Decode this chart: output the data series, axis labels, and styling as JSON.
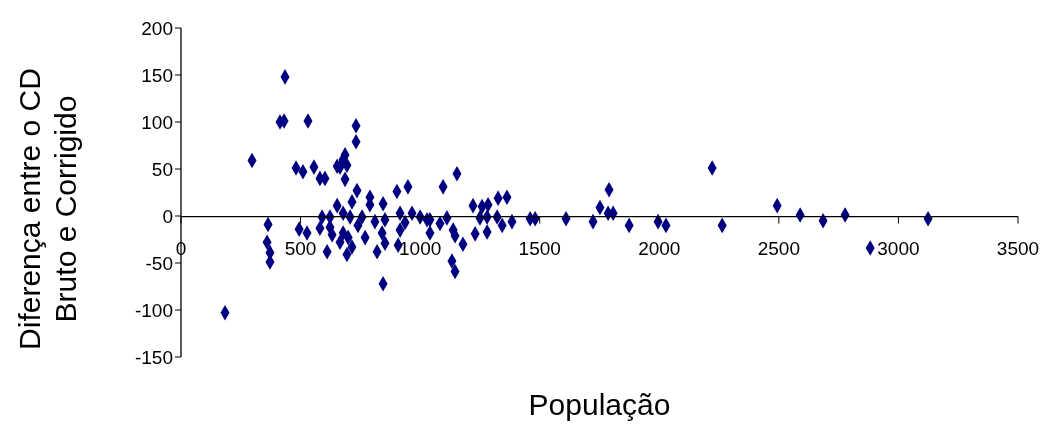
{
  "chart_data": {
    "type": "scatter",
    "xlabel": "População",
    "ylabel": "Diferença entre o CD Bruto e Corrigido",
    "marker": "diamond",
    "grid": false,
    "legend": false,
    "xlim": [
      0,
      3500
    ],
    "xticks": [
      0,
      500,
      1000,
      1500,
      2000,
      2500,
      3000,
      3500
    ],
    "ylim": [
      -150,
      200
    ],
    "yticks": [
      -150,
      -100,
      -50,
      0,
      50,
      100,
      150,
      200
    ],
    "series": [
      {
        "color": "#000080",
        "x": [
          184,
          297,
          414,
          431,
          435,
          531,
          481,
          510,
          364,
          494,
          527,
          360,
          372,
          372,
          732,
          732,
          556,
          581,
          602,
          686,
          678,
          653,
          665,
          694,
          686,
          736,
          715,
          790,
          790,
          845,
          903,
          949,
          653,
          590,
          623,
          678,
          707,
          757,
          811,
          853,
          916,
          966,
          1000,
          1029,
          581,
          632,
          665,
          678,
          699,
          715,
          694,
          611,
          770,
          820,
          853,
          841,
          916,
          937,
          908,
          845,
          623,
          740,
          1154,
          1096,
          1041,
          1083,
          1112,
          1041,
          1138,
          1146,
          1179,
          1133,
          1146,
          1221,
          1259,
          1284,
          1326,
          1363,
          1250,
          1280,
          1322,
          1343,
          1384,
          1230,
          1280,
          1460,
          1481,
          1610,
          1723,
          1752,
          1790,
          1786,
          1807,
          1874,
          1995,
          2028,
          2221,
          2263,
          2493,
          2589,
          2685,
          2777,
          2882,
          3124
        ],
        "values": [
          -103,
          59,
          100,
          101,
          148,
          101,
          51,
          47,
          -9,
          -14,
          -18,
          -28,
          -39,
          -49,
          96,
          79,
          52,
          40,
          40,
          65,
          60,
          53,
          52,
          54,
          39,
          27,
          15,
          20,
          12,
          13,
          26,
          31,
          11,
          -1,
          -1,
          3,
          -1,
          -1,
          -6,
          -4,
          3,
          3,
          -1,
          -4,
          -13,
          -20,
          -28,
          -18,
          -23,
          -33,
          -41,
          -38,
          -23,
          -38,
          -29,
          -18,
          -15,
          -7,
          -31,
          -72,
          -12,
          -10,
          45,
          31,
          -4,
          -8,
          -2,
          -18,
          -15,
          -21,
          -30,
          -48,
          -59,
          11,
          10,
          12,
          19,
          20,
          -2,
          -1,
          -1,
          -10,
          -6,
          -19,
          -17,
          -3,
          -3,
          -3,
          -6,
          9,
          28,
          3,
          3,
          -10,
          -6,
          -10,
          51,
          -10,
          11,
          1,
          -5,
          1,
          -34,
          -3
        ]
      }
    ]
  }
}
